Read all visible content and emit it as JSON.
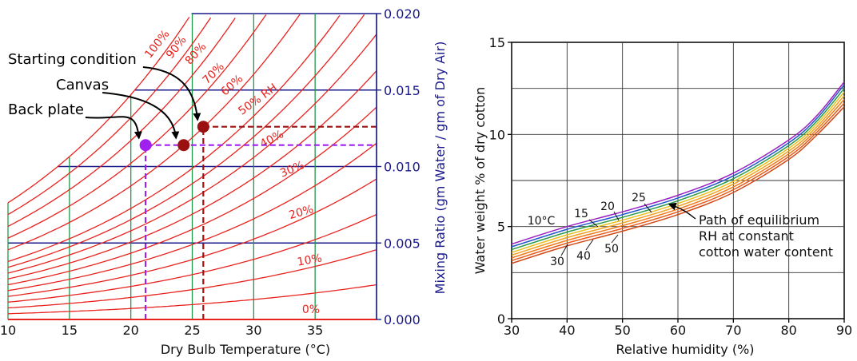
{
  "chart_data": [
    {
      "type": "line",
      "subtype": "psychrometric",
      "title": "",
      "xlabel": "Dry Bulb Temperature (°C)",
      "ylabel": "Mixing Ratio (gm Water / gm of Dry Air)",
      "xlim": [
        10,
        40
      ],
      "ylim": [
        0,
        0.02
      ],
      "xticks": [
        10,
        15,
        20,
        25,
        30,
        35
      ],
      "xtick_labels": [
        "10",
        "15",
        "20",
        "25",
        "30",
        "35"
      ],
      "yticks": [
        0,
        0.005,
        0.01,
        0.015,
        0.02
      ],
      "ytick_labels": [
        "0.000",
        "0.005",
        "0.010",
        "0.015",
        "0.020"
      ],
      "colors": {
        "rh": "#e8231f",
        "grid_h": "#1a1a8c",
        "grid_v": "#1e9a4a",
        "ylabel": "#1a1a8c",
        "canvas": "#9b1010",
        "backplate": "#a020f0"
      },
      "rh_curves": [
        {
          "rh": 0.1,
          "label": "10%"
        },
        {
          "rh": 0.2,
          "label": "20%"
        },
        {
          "rh": 0.3,
          "label": "30%"
        },
        {
          "rh": 0.4,
          "label": "40%"
        },
        {
          "rh": 0.5,
          "label": "50% RH"
        },
        {
          "rh": 0.6,
          "label": "60%"
        },
        {
          "rh": 0.7,
          "label": "70%"
        },
        {
          "rh": 0.8,
          "label": "80%"
        },
        {
          "rh": 0.9,
          "label": "90%"
        },
        {
          "rh": 1.0,
          "label": "100%"
        },
        {
          "rh": 0.0,
          "label": "0%"
        }
      ],
      "extra_rh_curves": [
        0.05,
        0.15,
        0.25,
        0.35,
        0.45
      ],
      "points": [
        {
          "name": "Starting condition",
          "x": 25.9,
          "y": 0.0126,
          "color": "#9b1010"
        },
        {
          "name": "Canvas",
          "x": 24.3,
          "y": 0.0114,
          "color": "#9b1010"
        },
        {
          "name": "Back plate",
          "x": 21.2,
          "y": 0.0114,
          "color": "#a020f0"
        }
      ]
    },
    {
      "type": "line",
      "title": "",
      "xlabel": "Relative humidity (%)",
      "ylabel": "Water weight % of dry cotton",
      "xlim": [
        30,
        90
      ],
      "ylim": [
        0,
        15
      ],
      "xticks": [
        30,
        40,
        50,
        60,
        70,
        80,
        90
      ],
      "xtick_labels": [
        "30",
        "40",
        "50",
        "60",
        "70",
        "80",
        "90"
      ],
      "yticks": [
        0,
        5,
        10,
        15
      ],
      "ytick_labels": [
        "0",
        "5",
        "10",
        "15"
      ],
      "grid": true,
      "x": [
        30,
        40,
        50,
        60,
        70,
        80,
        85,
        90
      ],
      "series": [
        {
          "name": "10°C",
          "color": "#9b1fc0",
          "values": [
            4.05,
            5.0,
            5.8,
            6.7,
            7.9,
            9.7,
            11.0,
            12.85
          ]
        },
        {
          "name": "15",
          "color": "#2255cc",
          "values": [
            3.9,
            4.85,
            5.65,
            6.55,
            7.75,
            9.55,
            10.85,
            12.7
          ]
        },
        {
          "name": "20",
          "color": "#2a9a4a",
          "values": [
            3.75,
            4.7,
            5.5,
            6.4,
            7.6,
            9.4,
            10.7,
            12.5
          ]
        },
        {
          "name": "25",
          "color": "#e8c020",
          "values": [
            3.6,
            4.55,
            5.35,
            6.25,
            7.45,
            9.25,
            10.55,
            12.3
          ]
        },
        {
          "name": "",
          "color": "#f0a020",
          "values": [
            3.45,
            4.4,
            5.2,
            6.1,
            7.3,
            9.1,
            10.4,
            12.1
          ]
        },
        {
          "name": "30",
          "color": "#ee7a1a",
          "values": [
            3.3,
            4.25,
            5.05,
            5.95,
            7.15,
            8.95,
            10.25,
            11.9
          ]
        },
        {
          "name": "40",
          "color": "#e85a1a",
          "values": [
            3.15,
            4.1,
            4.9,
            5.8,
            7.0,
            8.8,
            10.1,
            11.7
          ]
        },
        {
          "name": "50",
          "color": "#d04a18",
          "values": [
            3.0,
            3.95,
            4.75,
            5.65,
            6.85,
            8.65,
            9.95,
            11.5
          ]
        }
      ],
      "annotations": [
        {
          "text": "Path of equilibrium",
          "x": 59,
          "y": 5.2
        },
        {
          "text": "RH at constant",
          "x": 59,
          "y": 4.55
        },
        {
          "text": "cotton water content",
          "x": 59,
          "y": 3.9
        }
      ],
      "path_arrow_target": {
        "x": 58.5,
        "y": 6.2
      }
    }
  ]
}
